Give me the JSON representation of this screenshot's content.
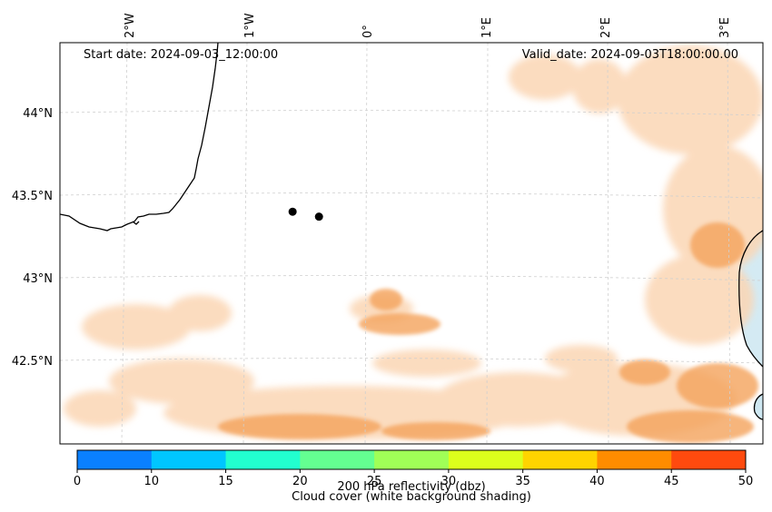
{
  "header": {
    "start_date": "Start date: 2024-09-03_12:00:00",
    "valid_date": "Valid_date: 2024-09-03T18:00:00.00"
  },
  "map": {
    "lon_labels": [
      "2°W",
      "1°W",
      "0°",
      "1°E",
      "2°E",
      "3°E"
    ],
    "lat_labels": [
      "44°N",
      "43.5°N",
      "43°N",
      "42.5°N"
    ],
    "markers": [
      {
        "name": "point-1",
        "lon": -0.62,
        "lat": 43.4
      },
      {
        "name": "point-2",
        "lon": -0.4,
        "lat": 43.37
      }
    ]
  },
  "colorbar": {
    "ticks": [
      "0",
      "10",
      "15",
      "20",
      "25",
      "30",
      "35",
      "40",
      "45",
      "50"
    ],
    "colors": [
      "#0a80ff",
      "#00c6ff",
      "#22ffcf",
      "#64ff91",
      "#a0ff57",
      "#dcff1c",
      "#ffd400",
      "#ff8c00",
      "#ff4a0e"
    ],
    "label": "200 hPa reflectivity (dbz)"
  },
  "caption": "Cloud cover (white background shading)",
  "colors": {
    "cloud": "#f4a35c",
    "cloud_light": "#fbd6b4",
    "sea": "#cfe8f2",
    "grid": "#cfcfcf"
  }
}
